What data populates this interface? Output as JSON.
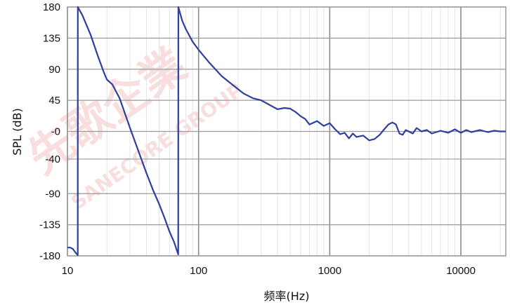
{
  "chart_data": {
    "type": "line",
    "xscale": "log",
    "xlim": [
      10,
      22000
    ],
    "ylim": [
      -180,
      180
    ],
    "xlabel": "频率(Hz)",
    "ylabel": "SPL (dB)",
    "x_ticks": [
      10,
      100,
      1000,
      10000
    ],
    "x_tick_labels": [
      "10",
      "100",
      "1000",
      "10000"
    ],
    "y_ticks": [
      180,
      135,
      90,
      45,
      0,
      -40,
      -90,
      -135,
      -180
    ],
    "y_tick_labels": [
      "180",
      "135",
      "90",
      "45",
      "-0",
      "-40",
      "-90",
      "-135",
      "-180"
    ],
    "grid": true,
    "line_color": "#2f3f9e",
    "watermark": [
      "先歌企業",
      "SANECORE GROUP"
    ],
    "series": [
      {
        "x": [
          10,
          10.5,
          11,
          11.5,
          11.99,
          12.01,
          13,
          15,
          17,
          19,
          20,
          22,
          25,
          30,
          35,
          40,
          45,
          50,
          55,
          60,
          65,
          69.9,
          70.1,
          75,
          80,
          90,
          100,
          120,
          150,
          180,
          220,
          260,
          300,
          350,
          400,
          450,
          500,
          550,
          600,
          650,
          700,
          800,
          900,
          1000,
          1100,
          1200,
          1300,
          1400,
          1500,
          1600,
          1800,
          2000,
          2200,
          2400,
          2600,
          2800,
          3000,
          3200,
          3400,
          3600,
          3800,
          4000,
          4300,
          4600,
          5000,
          5500,
          6000,
          7000,
          8000,
          9000,
          10000,
          11000,
          12000,
          14000,
          16000,
          18000,
          20000,
          22000
        ],
        "y": [
          -168,
          -168,
          -170,
          -175,
          -179,
          180,
          168,
          140,
          110,
          85,
          75,
          68,
          48,
          5,
          -30,
          -60,
          -85,
          -105,
          -125,
          -145,
          -160,
          -178,
          180,
          160,
          148,
          130,
          118,
          100,
          80,
          68,
          55,
          48,
          45,
          38,
          32,
          34,
          33,
          28,
          22,
          18,
          10,
          15,
          8,
          12,
          3,
          -4,
          -2,
          -10,
          -3,
          -8,
          -6,
          -13,
          -11,
          -5,
          3,
          10,
          13,
          10,
          -3,
          -5,
          2,
          0,
          -3,
          5,
          0,
          2,
          -3,
          1,
          -2,
          3,
          -2,
          2,
          -1,
          2,
          -1,
          1,
          0,
          0
        ]
      }
    ]
  }
}
